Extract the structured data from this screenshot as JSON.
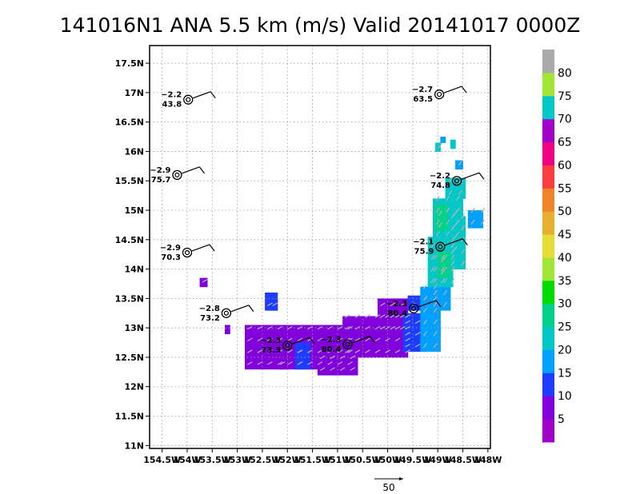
{
  "chart_data": {
    "type": "heatmap",
    "title": "141016N1 ANA 5.5 km (m/s) Valid 20141017  0000Z",
    "xlabel": "",
    "ylabel": "",
    "x_ticks": [
      {
        "label": "154.5W",
        "value": -154.5
      },
      {
        "label": "154W",
        "value": -154.0
      },
      {
        "label": "153.5W",
        "value": -153.5
      },
      {
        "label": "153W",
        "value": -153.0
      },
      {
        "label": "152.5W",
        "value": -152.5
      },
      {
        "label": "152W",
        "value": -152.0
      },
      {
        "label": "151.5W",
        "value": -151.5
      },
      {
        "label": "151W",
        "value": -151.0
      },
      {
        "label": "150.5W",
        "value": -150.5
      },
      {
        "label": "150W",
        "value": -150.0
      },
      {
        "label": "149.5W",
        "value": -149.5
      },
      {
        "label": "149W",
        "value": -149.0
      },
      {
        "label": "148.5W",
        "value": -148.5
      },
      {
        "label": "148W",
        "value": -148.0
      }
    ],
    "y_ticks": [
      {
        "label": "11N",
        "value": 11.0
      },
      {
        "label": "11.5N",
        "value": 11.5
      },
      {
        "label": "12N",
        "value": 12.0
      },
      {
        "label": "12.5N",
        "value": 12.5
      },
      {
        "label": "13N",
        "value": 13.0
      },
      {
        "label": "13.5N",
        "value": 13.5
      },
      {
        "label": "14N",
        "value": 14.0
      },
      {
        "label": "14.5N",
        "value": 14.5
      },
      {
        "label": "15N",
        "value": 15.0
      },
      {
        "label": "15.5N",
        "value": 15.5
      },
      {
        "label": "16N",
        "value": 16.0
      },
      {
        "label": "16.5N",
        "value": 16.5
      },
      {
        "label": "17N",
        "value": 17.0
      },
      {
        "label": "17.5N",
        "value": 17.5
      }
    ],
    "xlim": [
      -154.75,
      -147.95
    ],
    "ylim": [
      10.95,
      17.8
    ],
    "grid": true,
    "colorbar": {
      "labels": [
        "5",
        "10",
        "15",
        "20",
        "25",
        "30",
        "35",
        "40",
        "45",
        "50",
        "55",
        "60",
        "65",
        "70",
        "75",
        "80"
      ],
      "colors": [
        "#a000c8",
        "#8200dc",
        "#1e3cff",
        "#00a0ff",
        "#00c8c8",
        "#00d28c",
        "#00dc00",
        "#a0e632",
        "#e6dc32",
        "#e6af2d",
        "#f08228",
        "#fa3c3c",
        "#f00082",
        "#a000c8",
        "#00c8c8",
        "#a0e632",
        "#aaaaaa"
      ]
    },
    "wind_regions": [
      {
        "speed": 5,
        "lat": [
          12.3,
          13.05
        ],
        "lon": [
          -152.85,
          -150.6
        ]
      },
      {
        "speed": 5,
        "lat": [
          12.2,
          12.5
        ],
        "lon": [
          -151.4,
          -150.6
        ]
      },
      {
        "speed": 5,
        "lat": [
          12.5,
          13.2
        ],
        "lon": [
          -150.9,
          -149.6
        ]
      },
      {
        "speed": 5,
        "lat": [
          12.9,
          13.5
        ],
        "lon": [
          -150.2,
          -149.6
        ]
      },
      {
        "speed": 5,
        "lat": [
          13.7,
          13.85
        ],
        "lon": [
          -153.75,
          -153.6
        ]
      },
      {
        "speed": 5,
        "lat": [
          12.9,
          13.05
        ],
        "lon": [
          -153.25,
          -153.15
        ]
      },
      {
        "speed": 5,
        "lat": [
          13.3,
          13.5
        ],
        "lon": [
          -152.35,
          -152.2
        ]
      },
      {
        "speed": 5,
        "lat": [
          12.3,
          12.45
        ],
        "lon": [
          -152.2,
          -152.05
        ]
      },
      {
        "speed": 10,
        "lat": [
          12.3,
          12.75
        ],
        "lon": [
          -151.85,
          -151.55
        ]
      },
      {
        "speed": 10,
        "lat": [
          12.6,
          13.25
        ],
        "lon": [
          -149.7,
          -149.25
        ]
      },
      {
        "speed": 10,
        "lat": [
          13.3,
          13.6
        ],
        "lon": [
          -152.45,
          -152.2
        ]
      },
      {
        "speed": 10,
        "lat": [
          13.3,
          13.55
        ],
        "lon": [
          -149.6,
          -149.35
        ]
      },
      {
        "speed": 15,
        "lat": [
          12.6,
          13.7
        ],
        "lon": [
          -149.35,
          -148.95
        ]
      },
      {
        "speed": 15,
        "lat": [
          13.3,
          14.35
        ],
        "lon": [
          -149.15,
          -148.75
        ]
      },
      {
        "speed": 15,
        "lat": [
          14.25,
          15.0
        ],
        "lon": [
          -148.75,
          -148.5
        ]
      },
      {
        "speed": 15,
        "lat": [
          14.7,
          15.0
        ],
        "lon": [
          -148.4,
          -148.1
        ]
      },
      {
        "speed": 15,
        "lat": [
          15.7,
          15.85
        ],
        "lon": [
          -148.65,
          -148.5
        ]
      },
      {
        "speed": 15,
        "lat": [
          16.15,
          16.25
        ],
        "lon": [
          -148.95,
          -148.85
        ]
      },
      {
        "speed": 20,
        "lat": [
          13.7,
          14.55
        ],
        "lon": [
          -149.2,
          -148.7
        ]
      },
      {
        "speed": 20,
        "lat": [
          14.5,
          15.2
        ],
        "lon": [
          -149.1,
          -148.5
        ]
      },
      {
        "speed": 20,
        "lat": [
          15.2,
          15.55
        ],
        "lon": [
          -148.85,
          -148.45
        ]
      },
      {
        "speed": 20,
        "lat": [
          14.0,
          14.9
        ],
        "lon": [
          -148.8,
          -148.45
        ]
      },
      {
        "speed": 25,
        "lat": [
          13.85,
          14.3
        ],
        "lon": [
          -149.0,
          -148.75
        ]
      },
      {
        "speed": 25,
        "lat": [
          14.65,
          15.1
        ],
        "lon": [
          -149.05,
          -148.8
        ]
      },
      {
        "speed": 70,
        "lat": [
          16.0,
          16.15
        ],
        "lon": [
          -149.05,
          -148.95
        ]
      },
      {
        "speed": 70,
        "lat": [
          16.05,
          16.2
        ],
        "lon": [
          -148.75,
          -148.65
        ]
      }
    ],
    "observations": [
      {
        "label_top": "−2.2",
        "label_bottom": "43.8",
        "lat": 16.88,
        "lon": -153.98
      },
      {
        "label_top": "−2.9",
        "label_bottom": "75.7",
        "lat": 15.6,
        "lon": -154.2
      },
      {
        "label_top": "−2.9",
        "label_bottom": "70.3",
        "lat": 14.28,
        "lon": -154.0
      },
      {
        "label_top": "−2.8",
        "label_bottom": "73.2",
        "lat": 13.25,
        "lon": -153.22
      },
      {
        "label_top": "−2.3",
        "label_bottom": "73.3",
        "lat": 12.7,
        "lon": -152.0
      },
      {
        "label_top": "−2.3",
        "label_bottom": "80.4",
        "lat": 12.72,
        "lon": -150.8
      },
      {
        "label_top": "−2.3",
        "label_bottom": "80.4",
        "lat": 13.33,
        "lon": -149.48
      },
      {
        "label_top": "−2.1",
        "label_bottom": "75.9",
        "lat": 14.38,
        "lon": -148.95
      },
      {
        "label_top": "−2.2",
        "label_bottom": "74.8",
        "lat": 15.5,
        "lon": -148.62
      },
      {
        "label_top": "−2.7",
        "label_bottom": "63.5",
        "lat": 16.97,
        "lon": -148.97
      }
    ],
    "reference_vector": {
      "label": "50"
    }
  }
}
